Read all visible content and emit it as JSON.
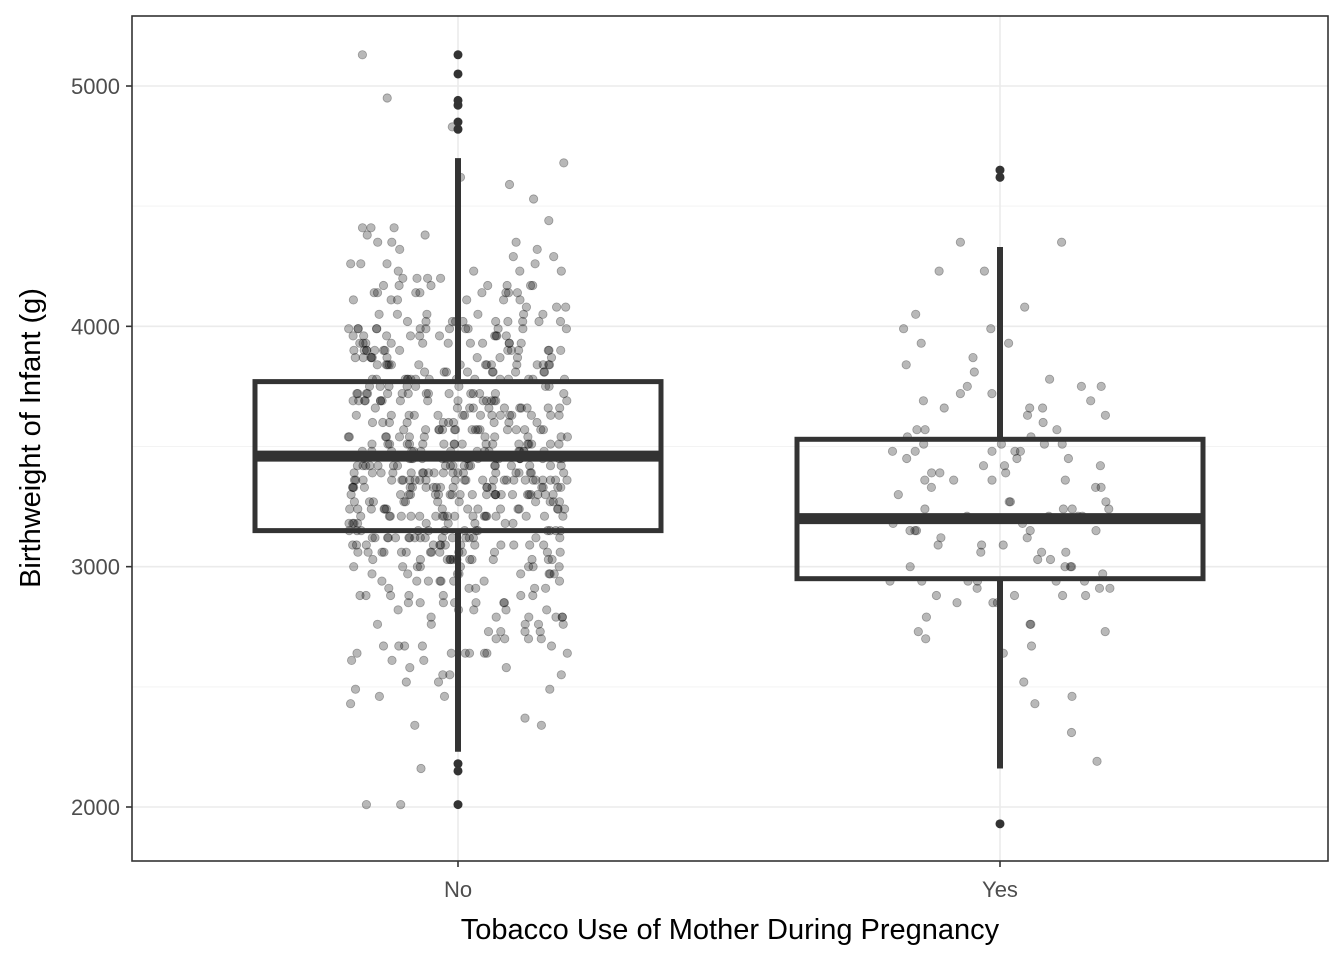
{
  "chart_data": {
    "type": "boxplot",
    "title": "",
    "xlabel": "Tobacco Use of Mother During Pregnancy",
    "ylabel": "Birthweight of Infant (g)",
    "categories": [
      "No",
      "Yes"
    ],
    "ylim": [
      1700,
      5300
    ],
    "yticks": [
      2000,
      3000,
      4000,
      5000
    ],
    "grid": true,
    "legend": "none",
    "colors": {
      "box": "#333333",
      "points": "#000000",
      "panel_border": "#333333",
      "grid": "#ebebeb"
    },
    "boxes": [
      {
        "category": "No",
        "whisker_low": 2230,
        "q1": 3150,
        "median": 3460,
        "q3": 3770,
        "whisker_high": 4700,
        "outliers": [
          2180,
          2150,
          2010,
          4820,
          4850,
          4920,
          4940,
          5050,
          5130
        ]
      },
      {
        "category": "Yes",
        "whisker_low": 2160,
        "q1": 2950,
        "median": 3200,
        "q3": 3530,
        "whisker_high": 4330,
        "outliers": [
          1930,
          4620,
          4650
        ]
      }
    ],
    "jitter_points": [
      {
        "category": "No",
        "count": 650,
        "spread": [
          2000,
          5140
        ]
      },
      {
        "category": "Yes",
        "count": 120,
        "spread": [
          1920,
          4650
        ]
      }
    ]
  }
}
